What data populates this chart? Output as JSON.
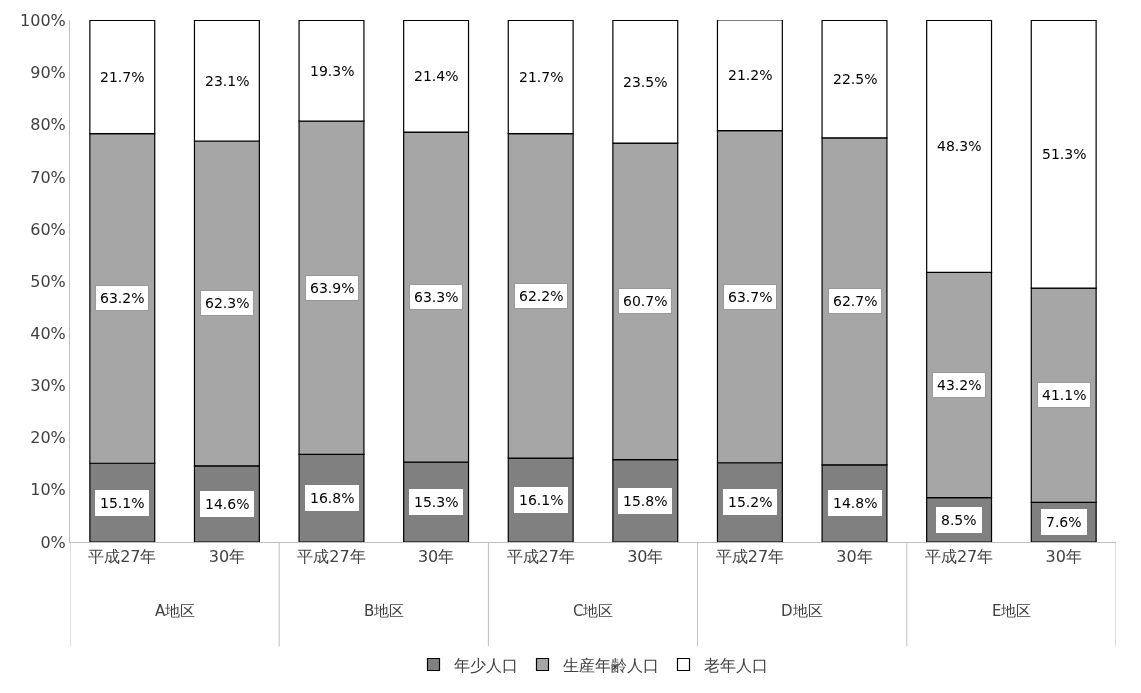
{
  "chart_data": {
    "type": "bar",
    "stacked": true,
    "categories": [
      "平成27年",
      "30年",
      "平成27年",
      "30年",
      "平成27年",
      "30年",
      "平成27年",
      "30年",
      "平成27年",
      "30年"
    ],
    "annotations": [
      "A地区",
      "B地区",
      "C地区",
      "D地区",
      "E地区"
    ],
    "series": [
      {
        "name": "年少人口",
        "color": "#808080",
        "values": [
          15.1,
          14.6,
          16.8,
          15.3,
          16.1,
          15.8,
          15.2,
          14.8,
          8.5,
          7.6
        ],
        "value_labels": [
          "15.1%",
          "14.6%",
          "16.8%",
          "15.3%",
          "16.1%",
          "15.8%",
          "15.2%",
          "14.8%",
          "8.5%",
          "7.6%"
        ]
      },
      {
        "name": "生産年齢人口",
        "color": "#a6a6a6",
        "values": [
          63.2,
          62.3,
          63.9,
          63.3,
          62.2,
          60.7,
          63.7,
          62.7,
          43.2,
          41.1
        ],
        "value_labels": [
          "63.2%",
          "62.3%",
          "63.9%",
          "63.3%",
          "62.2%",
          "60.7%",
          "63.7%",
          "62.7%",
          "43.2%",
          "41.1%"
        ]
      },
      {
        "name": "老年人口",
        "color": "#ffffff",
        "values": [
          21.7,
          23.1,
          19.3,
          21.4,
          21.7,
          23.5,
          21.2,
          22.5,
          48.3,
          51.3
        ],
        "value_labels": [
          "21.7%",
          "23.1%",
          "19.3%",
          "21.4%",
          "21.7%",
          "23.5%",
          "21.2%",
          "22.5%",
          "48.3%",
          "51.3%"
        ]
      }
    ],
    "ylim": [
      0,
      100.1
    ],
    "yticks": [
      {
        "value": 0,
        "label": "0%"
      },
      {
        "value": 10,
        "label": "10%"
      },
      {
        "value": 20,
        "label": "20%"
      },
      {
        "value": 30,
        "label": "30%"
      },
      {
        "value": 40,
        "label": "40%"
      },
      {
        "value": 50,
        "label": "50%"
      },
      {
        "value": 60,
        "label": "60%"
      },
      {
        "value": 70,
        "label": "70%"
      },
      {
        "value": 80,
        "label": "80%"
      },
      {
        "value": 90,
        "label": "90%"
      },
      {
        "value": 100,
        "label": "100%"
      }
    ],
    "legend": "bottom"
  }
}
